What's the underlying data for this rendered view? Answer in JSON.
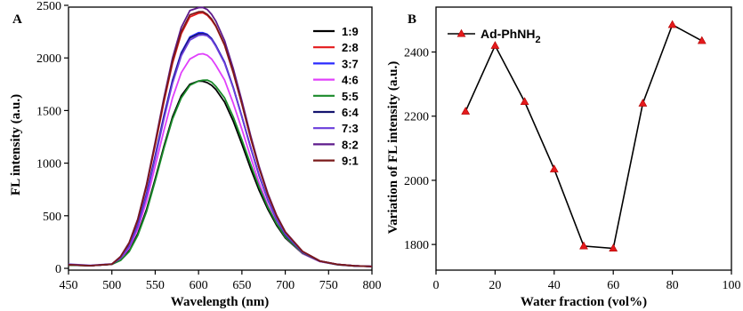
{
  "chart_data": [
    {
      "panel": "A",
      "type": "line",
      "xlabel": "Wavelength (nm)",
      "ylabel": "FL intensity (a.u.)",
      "xlim": [
        450,
        800
      ],
      "ylim": [
        0,
        2500
      ],
      "xticks": [
        450,
        500,
        550,
        600,
        650,
        700,
        750,
        800
      ],
      "yticks": [
        0,
        500,
        1000,
        1500,
        2000,
        2500
      ],
      "legend_position": "top-right",
      "x": [
        450,
        475,
        500,
        510,
        520,
        530,
        540,
        550,
        560,
        570,
        580,
        590,
        600,
        605,
        610,
        615,
        620,
        630,
        640,
        650,
        660,
        670,
        680,
        690,
        700,
        720,
        740,
        760,
        780,
        800
      ],
      "series": [
        {
          "name": "1:9",
          "color": "#000000",
          "peak": 1780,
          "center": 612,
          "values": [
            30,
            25,
            40,
            80,
            170,
            330,
            560,
            850,
            1160,
            1440,
            1640,
            1750,
            1780,
            1778,
            1765,
            1740,
            1700,
            1580,
            1400,
            1180,
            950,
            740,
            560,
            410,
            290,
            140,
            65,
            35,
            22,
            18
          ]
        },
        {
          "name": "2:8",
          "color": "#e41a1c",
          "peak": 2430,
          "center": 606,
          "values": [
            30,
            25,
            40,
            110,
            240,
            460,
            780,
            1170,
            1580,
            1950,
            2230,
            2390,
            2425,
            2430,
            2405,
            2360,
            2300,
            2120,
            1860,
            1560,
            1240,
            950,
            700,
            500,
            345,
            160,
            70,
            38,
            24,
            18
          ]
        },
        {
          "name": "3:7",
          "color": "#2a2aff",
          "peak": 2240,
          "center": 608,
          "values": [
            35,
            25,
            40,
            100,
            215,
            415,
            710,
            1070,
            1450,
            1790,
            2050,
            2200,
            2240,
            2240,
            2225,
            2185,
            2120,
            1960,
            1720,
            1440,
            1150,
            880,
            650,
            465,
            320,
            150,
            68,
            37,
            24,
            18
          ]
        },
        {
          "name": "4:6",
          "color": "#e040fb",
          "peak": 2040,
          "center": 610,
          "values": [
            35,
            25,
            40,
            90,
            195,
            375,
            640,
            970,
            1310,
            1620,
            1860,
            1990,
            2035,
            2040,
            2025,
            1990,
            1930,
            1790,
            1570,
            1320,
            1060,
            810,
            600,
            430,
            300,
            140,
            65,
            36,
            23,
            18
          ]
        },
        {
          "name": "5:5",
          "color": "#1a8a2a",
          "peak": 1790,
          "center": 614,
          "values": [
            30,
            25,
            38,
            75,
            160,
            315,
            540,
            830,
            1140,
            1420,
            1620,
            1740,
            1780,
            1788,
            1790,
            1770,
            1730,
            1620,
            1440,
            1220,
            990,
            770,
            580,
            425,
            300,
            145,
            68,
            36,
            23,
            18
          ]
        },
        {
          "name": "6:4",
          "color": "#14146e",
          "peak": 2230,
          "center": 609,
          "values": [
            35,
            25,
            40,
            98,
            212,
            410,
            700,
            1060,
            1440,
            1780,
            2040,
            2190,
            2230,
            2230,
            2218,
            2180,
            2115,
            1955,
            1720,
            1440,
            1150,
            880,
            650,
            465,
            320,
            150,
            68,
            37,
            24,
            18
          ]
        },
        {
          "name": "7:3",
          "color": "#6a3ddb",
          "peak": 2220,
          "center": 610,
          "values": [
            40,
            28,
            42,
            96,
            208,
            402,
            690,
            1045,
            1420,
            1760,
            2020,
            2170,
            2215,
            2220,
            2210,
            2175,
            2110,
            1950,
            1715,
            1440,
            1155,
            885,
            655,
            470,
            325,
            152,
            70,
            38,
            24,
            18
          ]
        },
        {
          "name": "8:2",
          "color": "#5e1a8c",
          "peak": 2480,
          "center": 607,
          "values": [
            35,
            25,
            40,
            112,
            245,
            470,
            800,
            1200,
            1620,
            2000,
            2290,
            2450,
            2478,
            2480,
            2460,
            2415,
            2350,
            2165,
            1900,
            1590,
            1265,
            965,
            710,
            505,
            348,
            160,
            70,
            38,
            24,
            18
          ]
        },
        {
          "name": "9:1",
          "color": "#7a1a1a",
          "peak": 2440,
          "center": 606,
          "values": [
            35,
            25,
            40,
            111,
            242,
            465,
            790,
            1185,
            1600,
            1970,
            2250,
            2410,
            2438,
            2440,
            2415,
            2370,
            2305,
            2125,
            1865,
            1560,
            1245,
            950,
            700,
            500,
            345,
            160,
            70,
            38,
            24,
            18
          ]
        }
      ]
    },
    {
      "panel": "B",
      "type": "line",
      "xlabel": "Water fraction (vol%)",
      "ylabel": "Variation of FL intensity (a.u.)",
      "xlim": [
        0,
        100
      ],
      "ylim": [
        1720,
        2540
      ],
      "xticks": [
        0,
        20,
        40,
        60,
        80,
        100
      ],
      "yticks": [
        1800,
        2000,
        2200,
        2400
      ],
      "legend_position": "top-left",
      "series": [
        {
          "name": "Ad-PhNH",
          "name_subscript": "2",
          "color": "#000000",
          "marker_color": "#e41a1c",
          "marker": "triangle",
          "x": [
            10,
            20,
            30,
            40,
            50,
            60,
            70,
            80,
            90
          ],
          "values": [
            2215,
            2420,
            2245,
            2035,
            1795,
            1788,
            2240,
            2485,
            2435
          ]
        }
      ]
    }
  ]
}
